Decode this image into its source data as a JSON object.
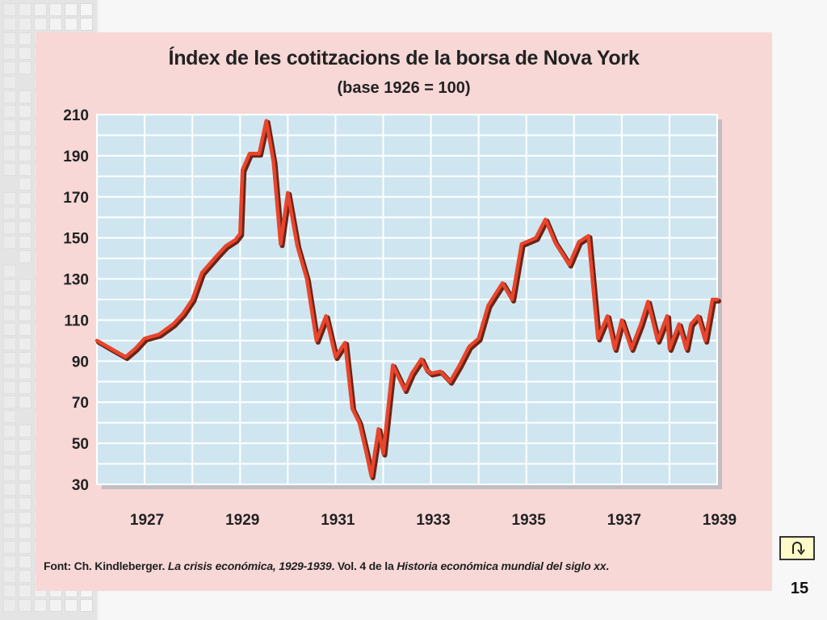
{
  "slide": {
    "page_number": "15",
    "source_parts": {
      "prefix": "Font: Ch. Kindleberger. ",
      "book": "La crisis económica, 1929-1939",
      "middle": ". Vol. 4 de la ",
      "series": "Historia económica mundial del siglo xx",
      "suffix": "."
    }
  },
  "colors": {
    "figure_background": "#f7d8d6",
    "plot_background": "#cfe6f1",
    "grid": "#ffffff",
    "line": "#e8452c",
    "line_shadow": "#6b2415"
  },
  "icons": {
    "nav": "return-arrow-icon"
  },
  "chart_data": {
    "type": "line",
    "title": "Índex de les cotitzacions de la borsa de Nova York",
    "subtitle": "(base 1926 = 100)",
    "xlabel": "",
    "ylabel": "",
    "xlim": [
      1926.0,
      1939.0
    ],
    "ylim": [
      30,
      210
    ],
    "x_ticks": [
      "1927",
      "1929",
      "1931",
      "1933",
      "1935",
      "1937",
      "1939"
    ],
    "y_ticks": [
      "210",
      "190",
      "170",
      "150",
      "130",
      "110",
      "90",
      "70",
      "50",
      "30"
    ],
    "grid": true,
    "legend": "none",
    "series": [
      {
        "x": [
          1926.0,
          1926.3,
          1926.6,
          1926.8,
          1927.0,
          1927.3,
          1927.6,
          1927.8,
          1928.0,
          1928.2,
          1928.5,
          1928.7,
          1928.9,
          1929.0,
          1929.05,
          1929.2,
          1929.4,
          1929.55,
          1929.7,
          1929.85,
          1930.0,
          1930.2,
          1930.4,
          1930.6,
          1930.8,
          1931.0,
          1931.2,
          1931.35,
          1931.5,
          1931.65,
          1931.75,
          1931.9,
          1932.0,
          1932.2,
          1932.45,
          1932.6,
          1932.8,
          1932.9,
          1933.0,
          1933.2,
          1933.4,
          1933.6,
          1933.8,
          1934.0,
          1934.2,
          1934.5,
          1934.7,
          1934.9,
          1935.2,
          1935.4,
          1935.6,
          1935.9,
          1936.1,
          1936.3,
          1936.5,
          1936.7,
          1936.85,
          1937.0,
          1937.2,
          1937.4,
          1937.55,
          1937.75,
          1937.95,
          1938.0,
          1938.2,
          1938.35,
          1938.45,
          1938.6,
          1938.75,
          1938.9,
          1939.0
        ],
        "y": [
          100,
          96,
          92,
          96,
          101,
          103,
          108,
          113,
          120,
          133,
          141,
          146,
          149,
          152,
          183,
          191,
          191,
          207,
          187,
          147,
          172,
          146,
          130,
          100,
          112,
          92,
          99,
          67,
          60,
          45,
          34,
          57,
          45,
          88,
          76,
          84,
          91,
          86,
          84,
          85,
          80,
          88,
          97,
          101,
          117,
          128,
          120,
          147,
          150,
          159,
          148,
          137,
          148,
          151,
          101,
          112,
          96,
          110,
          96,
          108,
          119,
          100,
          112,
          96,
          108,
          96,
          108,
          112,
          100,
          120,
          120
        ]
      }
    ]
  }
}
